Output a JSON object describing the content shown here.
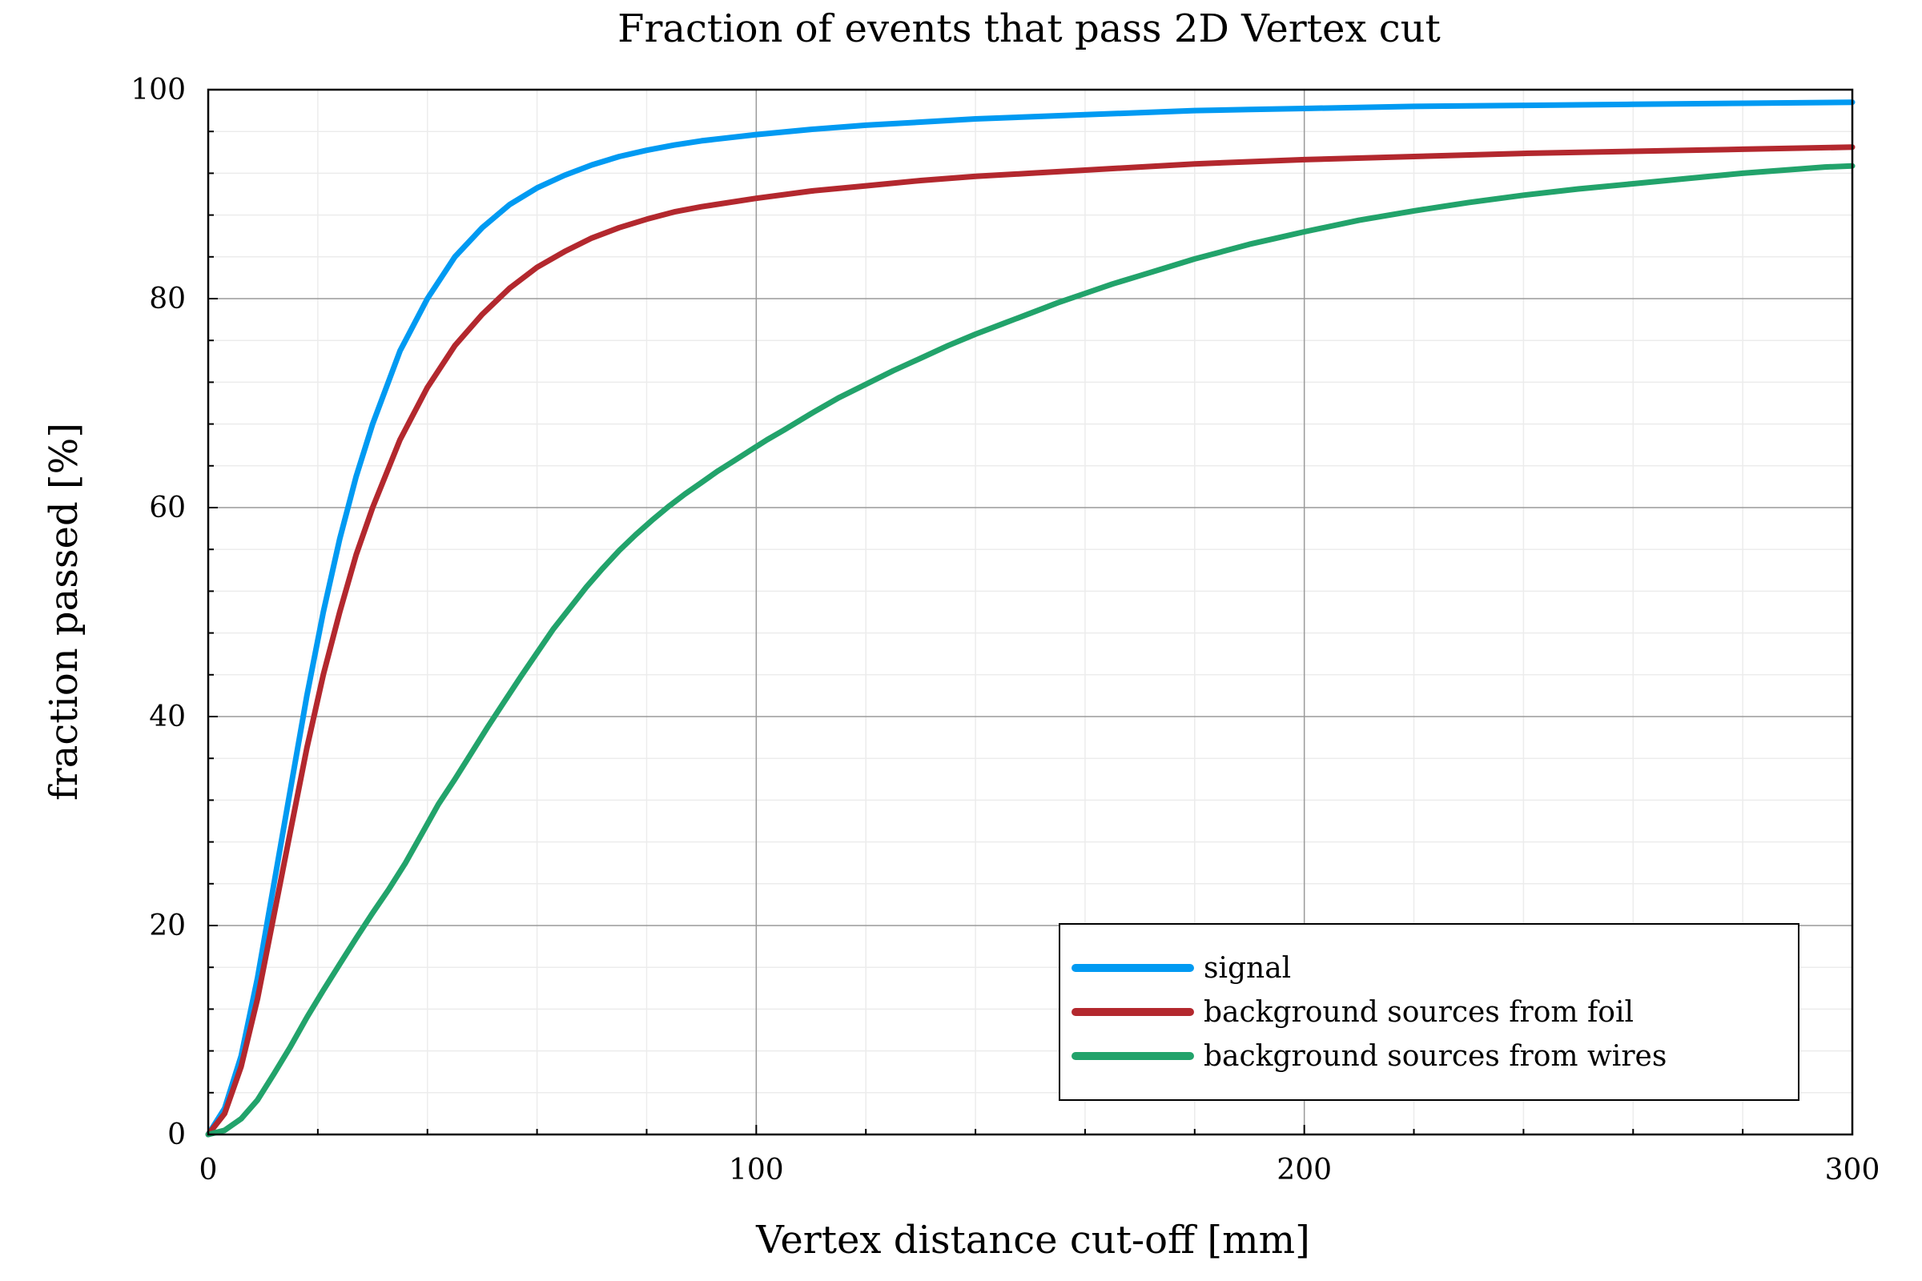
{
  "chart_data": {
    "type": "line",
    "title": "Fraction of events that pass 2D Vertex cut",
    "xlabel": "Vertex distance cut-off [mm]",
    "ylabel": "fraction passed [%]",
    "xlim": [
      0,
      300
    ],
    "ylim": [
      0,
      100
    ],
    "x_ticks": [
      0,
      100,
      200,
      300
    ],
    "y_ticks": [
      0,
      20,
      40,
      60,
      80,
      100
    ],
    "grid": true,
    "legend_position": "bottom-right",
    "series": [
      {
        "name": "signal",
        "color": "#009AF2",
        "x": [
          0,
          3,
          6,
          9,
          12,
          15,
          18,
          21,
          24,
          27,
          30,
          35,
          40,
          45,
          50,
          55,
          60,
          65,
          70,
          75,
          80,
          85,
          90,
          100,
          110,
          120,
          130,
          140,
          150,
          160,
          170,
          180,
          190,
          200,
          220,
          240,
          260,
          280,
          300
        ],
        "y": [
          0,
          2.5,
          7.5,
          15,
          24,
          33,
          42,
          50,
          57,
          63,
          68,
          75,
          80,
          84,
          86.8,
          89,
          90.6,
          91.8,
          92.8,
          93.6,
          94.2,
          94.7,
          95.1,
          95.7,
          96.2,
          96.6,
          96.9,
          97.2,
          97.4,
          97.6,
          97.8,
          98,
          98.1,
          98.2,
          98.4,
          98.5,
          98.6,
          98.7,
          98.8
        ]
      },
      {
        "name": "background sources from foil",
        "color": "#B3282E",
        "x": [
          0,
          3,
          6,
          9,
          12,
          15,
          18,
          21,
          24,
          27,
          30,
          35,
          40,
          45,
          50,
          55,
          60,
          65,
          70,
          75,
          80,
          85,
          90,
          100,
          110,
          120,
          130,
          140,
          150,
          160,
          170,
          180,
          190,
          200,
          220,
          240,
          260,
          280,
          300
        ],
        "y": [
          0,
          2,
          6.5,
          13,
          21,
          29,
          37,
          44,
          50,
          55.5,
          60,
          66.5,
          71.5,
          75.5,
          78.5,
          81,
          83,
          84.5,
          85.8,
          86.8,
          87.6,
          88.3,
          88.8,
          89.6,
          90.3,
          90.8,
          91.3,
          91.7,
          92,
          92.3,
          92.6,
          92.9,
          93.1,
          93.3,
          93.6,
          93.9,
          94.1,
          94.3,
          94.5
        ]
      },
      {
        "name": "background sources from wires",
        "color": "#22A36B",
        "x": [
          0,
          3,
          6,
          9,
          12,
          15,
          18,
          21,
          24,
          27,
          30,
          33,
          36,
          39,
          42,
          45,
          48,
          51,
          54,
          57,
          60,
          63,
          66,
          69,
          72,
          75,
          78,
          81,
          84,
          87,
          90,
          93,
          96,
          99,
          102,
          105,
          110,
          115,
          120,
          125,
          130,
          135,
          140,
          145,
          150,
          155,
          160,
          165,
          170,
          175,
          180,
          185,
          190,
          195,
          200,
          210,
          220,
          230,
          240,
          250,
          260,
          270,
          280,
          290,
          295,
          300
        ],
        "y": [
          0,
          0.4,
          1.5,
          3.3,
          5.8,
          8.4,
          11.2,
          13.8,
          16.3,
          18.8,
          21.2,
          23.5,
          26,
          28.8,
          31.6,
          34,
          36.5,
          39,
          41.4,
          43.8,
          46.1,
          48.4,
          50.4,
          52.4,
          54.2,
          55.9,
          57.4,
          58.8,
          60.1,
          61.3,
          62.4,
          63.5,
          64.5,
          65.5,
          66.5,
          67.4,
          69,
          70.5,
          71.8,
          73.1,
          74.3,
          75.5,
          76.6,
          77.6,
          78.6,
          79.6,
          80.5,
          81.4,
          82.2,
          83,
          83.8,
          84.5,
          85.2,
          85.8,
          86.4,
          87.5,
          88.4,
          89.2,
          89.9,
          90.5,
          91,
          91.5,
          92,
          92.4,
          92.6,
          92.7
        ]
      }
    ]
  }
}
